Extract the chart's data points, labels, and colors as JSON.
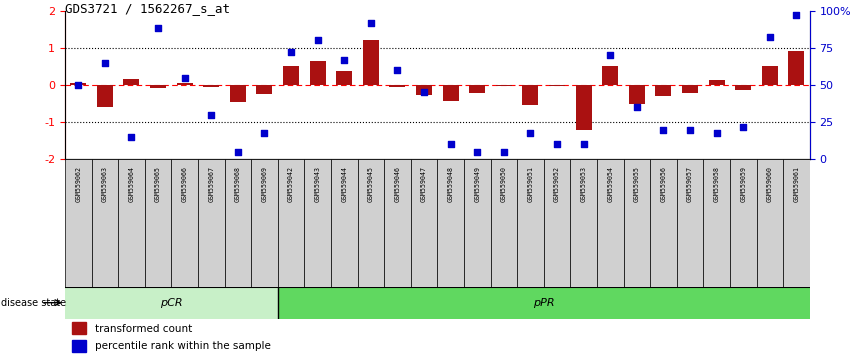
{
  "title": "GDS3721 / 1562267_s_at",
  "samples": [
    "GSM559062",
    "GSM559063",
    "GSM559064",
    "GSM559065",
    "GSM559066",
    "GSM559067",
    "GSM559068",
    "GSM559069",
    "GSM559042",
    "GSM559043",
    "GSM559044",
    "GSM559045",
    "GSM559046",
    "GSM559047",
    "GSM559048",
    "GSM559049",
    "GSM559050",
    "GSM559051",
    "GSM559052",
    "GSM559053",
    "GSM559054",
    "GSM559055",
    "GSM559056",
    "GSM559057",
    "GSM559058",
    "GSM559059",
    "GSM559060",
    "GSM559061"
  ],
  "transformed_count": [
    0.05,
    -0.6,
    0.15,
    -0.08,
    0.05,
    -0.05,
    -0.45,
    -0.25,
    0.5,
    0.65,
    0.38,
    1.2,
    -0.05,
    -0.28,
    -0.42,
    -0.22,
    -0.04,
    -0.55,
    -0.04,
    -1.2,
    0.5,
    -0.5,
    -0.3,
    -0.22,
    0.12,
    -0.14,
    0.5,
    0.92
  ],
  "percentile_rank": [
    50,
    65,
    15,
    88,
    55,
    30,
    5,
    18,
    72,
    80,
    67,
    92,
    60,
    45,
    10,
    5,
    5,
    18,
    10,
    10,
    70,
    35,
    20,
    20,
    18,
    22,
    82,
    97
  ],
  "pCR_count": 8,
  "pPR_count": 20,
  "bar_color": "#aa1111",
  "scatter_color": "#0000cc",
  "ylim_left": [
    -2,
    2
  ],
  "ylim_right": [
    0,
    100
  ],
  "yticks_left": [
    -2,
    -1,
    0,
    1,
    2
  ],
  "yticks_right": [
    0,
    25,
    50,
    75,
    100
  ],
  "ytick_labels_right": [
    "0",
    "25",
    "50",
    "75",
    "100%"
  ],
  "pCR_color": "#c8f0c8",
  "pPR_color": "#60d860",
  "disease_state_label": "disease state",
  "tick_bg_color": "#d0d0d0",
  "legend_items": [
    "transformed count",
    "percentile rank within the sample"
  ],
  "legend_colors": [
    "#aa1111",
    "#0000cc"
  ]
}
